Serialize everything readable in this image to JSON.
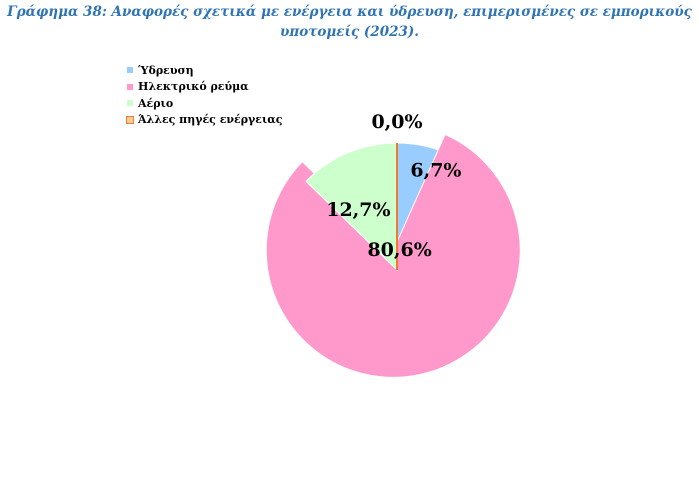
{
  "title_lines": [
    "Γράφημα 38: Αναφορές σχετικά με ενέργεια και ύδρευση, επιμερισμένες σε εμπορικούς",
    "υποτομείς (2023)."
  ],
  "colors": {
    "title": "#2e74b5",
    "slice_edge": "#ffffff"
  },
  "chart_data": {
    "type": "pie",
    "title": "Γράφημα 38: Αναφορές σχετικά με ενέργεια και ύδρευση, επιμερισμένες σε εμπορικούς υποτομείς (2023).",
    "legend_position": "top-left",
    "exploded": true,
    "start_angle_deg": 0,
    "direction": "clockwise",
    "series": [
      {
        "name": "Ύδρευση",
        "value": 6.7,
        "label": "6,7%",
        "color": "#99ccff",
        "edge_color": "#ffffff"
      },
      {
        "name": "Ηλεκτρικό ρεύμα",
        "value": 80.6,
        "label": "80,6%",
        "color": "#ff99cc",
        "edge_color": "#ffffff"
      },
      {
        "name": "Αέριο",
        "value": 12.7,
        "label": "12,7%",
        "color": "#ccffcc",
        "edge_color": "#ffffff"
      },
      {
        "name": "Άλλες πηγές ενέργειας",
        "value": 0.0,
        "label": "0,0%",
        "color": "#ffcc99",
        "edge_color": "#f07a30"
      }
    ]
  }
}
